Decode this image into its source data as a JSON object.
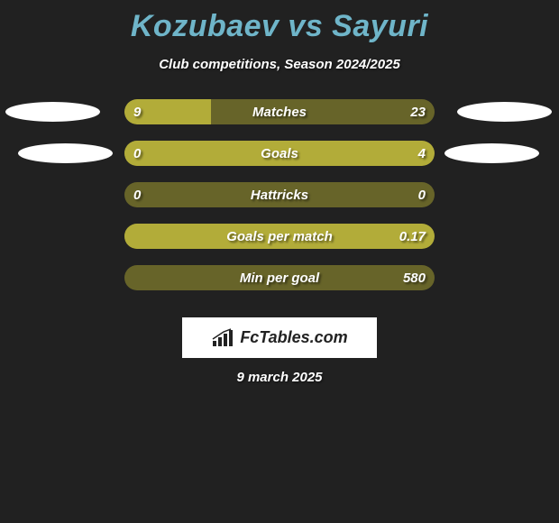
{
  "title": "Kozubaev vs Sayuri",
  "subtitle": "Club competitions, Season 2024/2025",
  "date": "9 march 2025",
  "logo_text": "FcTables.com",
  "colors": {
    "background": "#212121",
    "title_color": "#6fb5c9",
    "text_color": "#ffffff",
    "bar_bg": "#676429",
    "bar_fill": "#b2ac39",
    "ellipse_color": "#ffffff",
    "logo_bg": "#ffffff",
    "logo_text_color": "#222222"
  },
  "rows": [
    {
      "label": "Matches",
      "left_value": "9",
      "right_value": "23",
      "left_pct": 28,
      "right_pct": 0,
      "show_left_ellipse": true,
      "show_right_ellipse": true
    },
    {
      "label": "Goals",
      "left_value": "0",
      "right_value": "4",
      "left_pct": 0,
      "right_pct": 100,
      "show_left_ellipse": true,
      "show_right_ellipse": true
    },
    {
      "label": "Hattricks",
      "left_value": "0",
      "right_value": "0",
      "left_pct": 0,
      "right_pct": 0,
      "show_left_ellipse": false,
      "show_right_ellipse": false
    },
    {
      "label": "Goals per match",
      "left_value": "",
      "right_value": "0.17",
      "left_pct": 0,
      "right_pct": 100,
      "show_left_ellipse": false,
      "show_right_ellipse": false
    },
    {
      "label": "Min per goal",
      "left_value": "",
      "right_value": "580",
      "left_pct": 0,
      "right_pct": 0,
      "show_left_ellipse": false,
      "show_right_ellipse": false
    }
  ]
}
